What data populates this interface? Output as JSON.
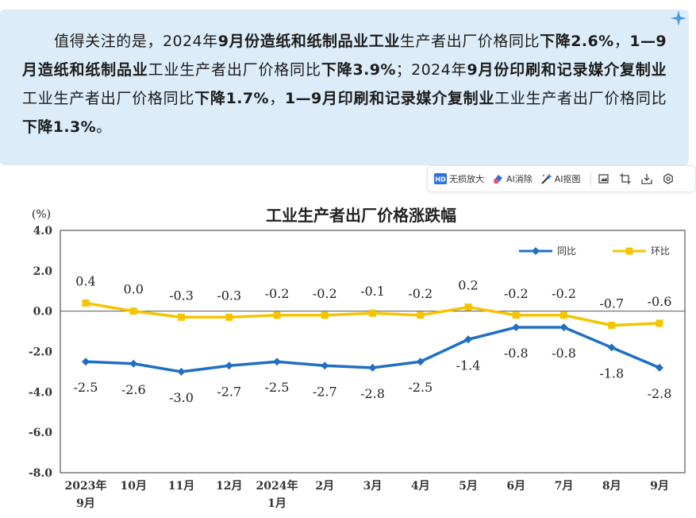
{
  "note": {
    "segments": [
      {
        "text": "值得关注的是，2024年",
        "bold": false
      },
      {
        "text": "9月份造纸和纸制品业工业",
        "bold": true
      },
      {
        "text": "生产者出厂价格同比",
        "bold": false
      },
      {
        "text": "下降2.6%",
        "bold": true
      },
      {
        "text": "，",
        "bold": false
      },
      {
        "text": "1—9月造纸和纸制品业",
        "bold": true
      },
      {
        "text": "工业生产者出厂价格同比",
        "bold": false
      },
      {
        "text": "下降3.9%",
        "bold": true
      },
      {
        "text": "；2024年",
        "bold": false
      },
      {
        "text": "9月份印刷和记录媒介复制业",
        "bold": true
      },
      {
        "text": "工业生产者出厂价格同比",
        "bold": false
      },
      {
        "text": "下降1.7%",
        "bold": true
      },
      {
        "text": "，",
        "bold": false
      },
      {
        "text": "1—9月印刷和记录媒介复制业",
        "bold": true
      },
      {
        "text": "工业生产者出厂价格同比",
        "bold": false
      },
      {
        "text": "下降1.3%",
        "bold": true
      },
      {
        "text": "。",
        "bold": false
      }
    ]
  },
  "toolbar": {
    "lossless_zoom": "无损放大",
    "ai_erase": "AI消除",
    "ai_cutout": "AI抠图",
    "hd_badge": "HD"
  },
  "chart_data": {
    "type": "line",
    "title": "工业生产者出厂价格涨跌幅",
    "ylabel": "(%)",
    "ylim": [
      -8.0,
      4.0
    ],
    "yticks": [
      "4.0",
      "2.0",
      "0.0",
      "-2.0",
      "-4.0",
      "-6.0",
      "-8.0"
    ],
    "categories": [
      [
        "2023年",
        "9月"
      ],
      [
        "10月"
      ],
      [
        "11月"
      ],
      [
        "12月"
      ],
      [
        "2024年",
        "1月"
      ],
      [
        "2月"
      ],
      [
        "3月"
      ],
      [
        "4月"
      ],
      [
        "5月"
      ],
      [
        "6月"
      ],
      [
        "7月"
      ],
      [
        "8月"
      ],
      [
        "9月"
      ]
    ],
    "series": [
      {
        "name": "同比",
        "color": "#1f6fc2",
        "values": [
          -2.5,
          -2.6,
          -3.0,
          -2.7,
          -2.5,
          -2.7,
          -2.8,
          -2.5,
          -1.4,
          -0.8,
          -0.8,
          -1.8,
          -2.8
        ],
        "labels": [
          "-2.5",
          "-2.6",
          "-3.0",
          "-2.7",
          "-2.5",
          "-2.7",
          "-2.8",
          "-2.5",
          "-1.4",
          "-0.8",
          "-0.8",
          "-1.8",
          "-2.8"
        ]
      },
      {
        "name": "环比",
        "color": "#f5c400",
        "values": [
          0.4,
          0.0,
          -0.3,
          -0.3,
          -0.2,
          -0.2,
          -0.1,
          -0.2,
          0.2,
          -0.2,
          -0.2,
          -0.7,
          -0.6
        ],
        "labels": [
          "0.4",
          "0.0",
          "-0.3",
          "-0.3",
          "-0.2",
          "-0.2",
          "-0.1",
          "-0.2",
          "0.2",
          "-0.2",
          "-0.2",
          "-0.7",
          "-0.6"
        ]
      }
    ],
    "legend_position": "top-right",
    "grid": false
  }
}
